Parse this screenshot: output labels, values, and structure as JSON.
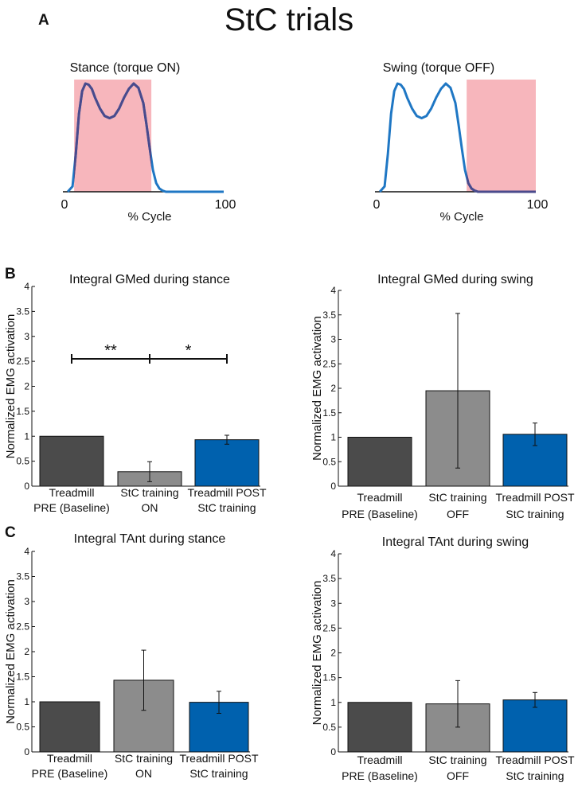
{
  "panel_labels": {
    "a": "A",
    "b": "B",
    "c": "C"
  },
  "figure_title": "StC trials",
  "chart_data": [
    {
      "id": "stance_profile",
      "type": "line",
      "title": "Stance (torque ON)",
      "xlabel": "% Cycle",
      "xticks": [
        "0",
        "100"
      ],
      "xlim": [
        0,
        100
      ],
      "ylim": [
        0,
        1.1
      ],
      "shaded_region": {
        "from": 7,
        "to": 55,
        "color": "#f7b6bc"
      },
      "x": [
        3,
        6,
        8,
        10,
        12,
        14,
        16,
        18,
        20,
        23,
        26,
        29,
        32,
        35,
        38,
        41,
        44,
        47,
        50,
        52,
        54,
        56,
        58,
        60,
        62,
        64,
        66,
        70,
        80,
        90,
        100
      ],
      "y": [
        0.0,
        0.05,
        0.35,
        0.72,
        0.93,
        1.0,
        0.99,
        0.95,
        0.87,
        0.77,
        0.7,
        0.68,
        0.7,
        0.77,
        0.87,
        0.95,
        1.0,
        0.96,
        0.82,
        0.62,
        0.4,
        0.2,
        0.08,
        0.03,
        0.01,
        0.0,
        0.0,
        0.0,
        0.0,
        0.0,
        0.0
      ],
      "line_color": "#1f77c4"
    },
    {
      "id": "swing_profile",
      "type": "line",
      "title": "Swing (torque OFF)",
      "xlabel": "% Cycle",
      "xticks": [
        "0",
        "100"
      ],
      "xlim": [
        0,
        100
      ],
      "ylim": [
        0,
        1.1
      ],
      "shaded_region": {
        "from": 57,
        "to": 100,
        "color": "#f7b6bc"
      },
      "x": [
        3,
        6,
        8,
        10,
        12,
        14,
        16,
        18,
        20,
        23,
        26,
        29,
        32,
        35,
        38,
        41,
        44,
        47,
        50,
        52,
        54,
        56,
        58,
        60,
        62,
        64,
        66,
        70,
        80,
        90,
        100
      ],
      "y": [
        0.0,
        0.05,
        0.35,
        0.72,
        0.93,
        1.0,
        0.99,
        0.95,
        0.87,
        0.77,
        0.7,
        0.68,
        0.7,
        0.77,
        0.87,
        0.95,
        1.0,
        0.96,
        0.82,
        0.62,
        0.4,
        0.2,
        0.08,
        0.03,
        0.01,
        0.0,
        0.0,
        0.0,
        0.0,
        0.0,
        0.0
      ],
      "line_color": "#1f77c4"
    },
    {
      "id": "gmed_stance",
      "type": "bar",
      "title": "Integral GMed during stance",
      "ylabel": "Normalized EMG activation",
      "ylim": [
        0,
        4
      ],
      "yticks": [
        "0",
        "0.5",
        "1",
        "1.5",
        "2",
        "2.5",
        "3",
        "3.5",
        "4"
      ],
      "categories": [
        [
          "Treadmill",
          "PRE (Baseline)"
        ],
        [
          "StC training",
          "ON"
        ],
        [
          "Treadmill POST",
          "StC training"
        ]
      ],
      "values": [
        1.0,
        0.29,
        0.93
      ],
      "errors": [
        0,
        0.2,
        0.09
      ],
      "colors": [
        "#4b4b4b",
        "#8c8c8c",
        "#0061ae"
      ],
      "significance": [
        {
          "from": 0,
          "to": 1,
          "label": "**",
          "y": 2.55
        },
        {
          "from": 1,
          "to": 2,
          "label": "*",
          "y": 2.55
        }
      ]
    },
    {
      "id": "gmed_swing",
      "type": "bar",
      "title": "Integral GMed during swing",
      "ylabel": "Normalized EMG activation",
      "ylim": [
        0,
        4
      ],
      "yticks": [
        "0",
        "0.5",
        "1",
        "1.5",
        "2",
        "2.5",
        "3",
        "3.5",
        "4"
      ],
      "categories": [
        [
          "Treadmill",
          "PRE (Baseline)"
        ],
        [
          "StC training",
          "OFF"
        ],
        [
          "Treadmill POST",
          "StC training"
        ]
      ],
      "values": [
        1.0,
        1.95,
        1.06
      ],
      "errors": [
        0,
        1.58,
        0.23
      ],
      "colors": [
        "#4b4b4b",
        "#8c8c8c",
        "#0061ae"
      ],
      "significance": []
    },
    {
      "id": "tant_stance",
      "type": "bar",
      "title": "Integral TAnt during stance",
      "ylabel": "Normalized EMG activation",
      "ylim": [
        0,
        4
      ],
      "yticks": [
        "0",
        "0.5",
        "1",
        "1.5",
        "2",
        "2.5",
        "3",
        "3.5",
        "4"
      ],
      "categories": [
        [
          "Treadmill",
          "PRE (Baseline)"
        ],
        [
          "StC training",
          "ON"
        ],
        [
          "Treadmill POST",
          "StC training"
        ]
      ],
      "values": [
        1.0,
        1.43,
        0.99
      ],
      "errors": [
        0,
        0.6,
        0.22
      ],
      "colors": [
        "#4b4b4b",
        "#8c8c8c",
        "#0061ae"
      ],
      "significance": []
    },
    {
      "id": "tant_swing",
      "type": "bar",
      "title": "Integral TAnt during swing",
      "ylabel": "Normalized EMG activation",
      "ylim": [
        0,
        4
      ],
      "yticks": [
        "0",
        "0.5",
        "1",
        "1.5",
        "2",
        "2.5",
        "3",
        "3.5",
        "4"
      ],
      "categories": [
        [
          "Treadmill",
          "PRE (Baseline)"
        ],
        [
          "StC training",
          "OFF"
        ],
        [
          "Treadmill POST",
          "StC training"
        ]
      ],
      "values": [
        1.0,
        0.97,
        1.05
      ],
      "errors": [
        0,
        0.47,
        0.15
      ],
      "colors": [
        "#4b4b4b",
        "#8c8c8c",
        "#0061ae"
      ],
      "significance": []
    }
  ]
}
